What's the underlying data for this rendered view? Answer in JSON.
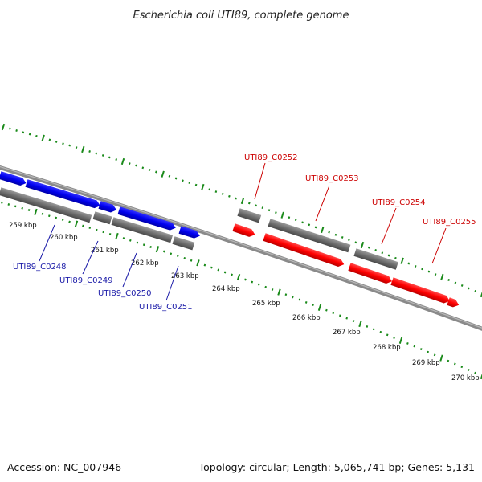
{
  "title": "Escherichia coli UTI89, complete genome",
  "footer": {
    "accession": "Accession: NC_007946",
    "summary": "Topology: circular; Length: 5,065,741 bp; Genes: 5,131"
  },
  "colors": {
    "backbone": "#8a8a8a",
    "forward_gene": "#ff0000",
    "reverse_gene": "#0000ee",
    "cds": "#707070",
    "tick": "#1a8a1a",
    "label_forward": "#cc0000",
    "label_reverse": "#1a1aa8"
  },
  "tick_labels": [
    "259 kbp",
    "260 kbp",
    "261 kbp",
    "262 kbp",
    "263 kbp",
    "264 kbp",
    "265 kbp",
    "266 kbp",
    "267 kbp",
    "268 kbp",
    "269 kbp",
    "270 kbp"
  ],
  "genes_reverse": [
    "UTI89_C0248",
    "UTI89_C0249",
    "UTI89_C0250",
    "UTI89_C0251"
  ],
  "genes_forward": [
    "UTI89_C0252",
    "UTI89_C0253",
    "UTI89_C0254",
    "UTI89_C0255"
  ]
}
